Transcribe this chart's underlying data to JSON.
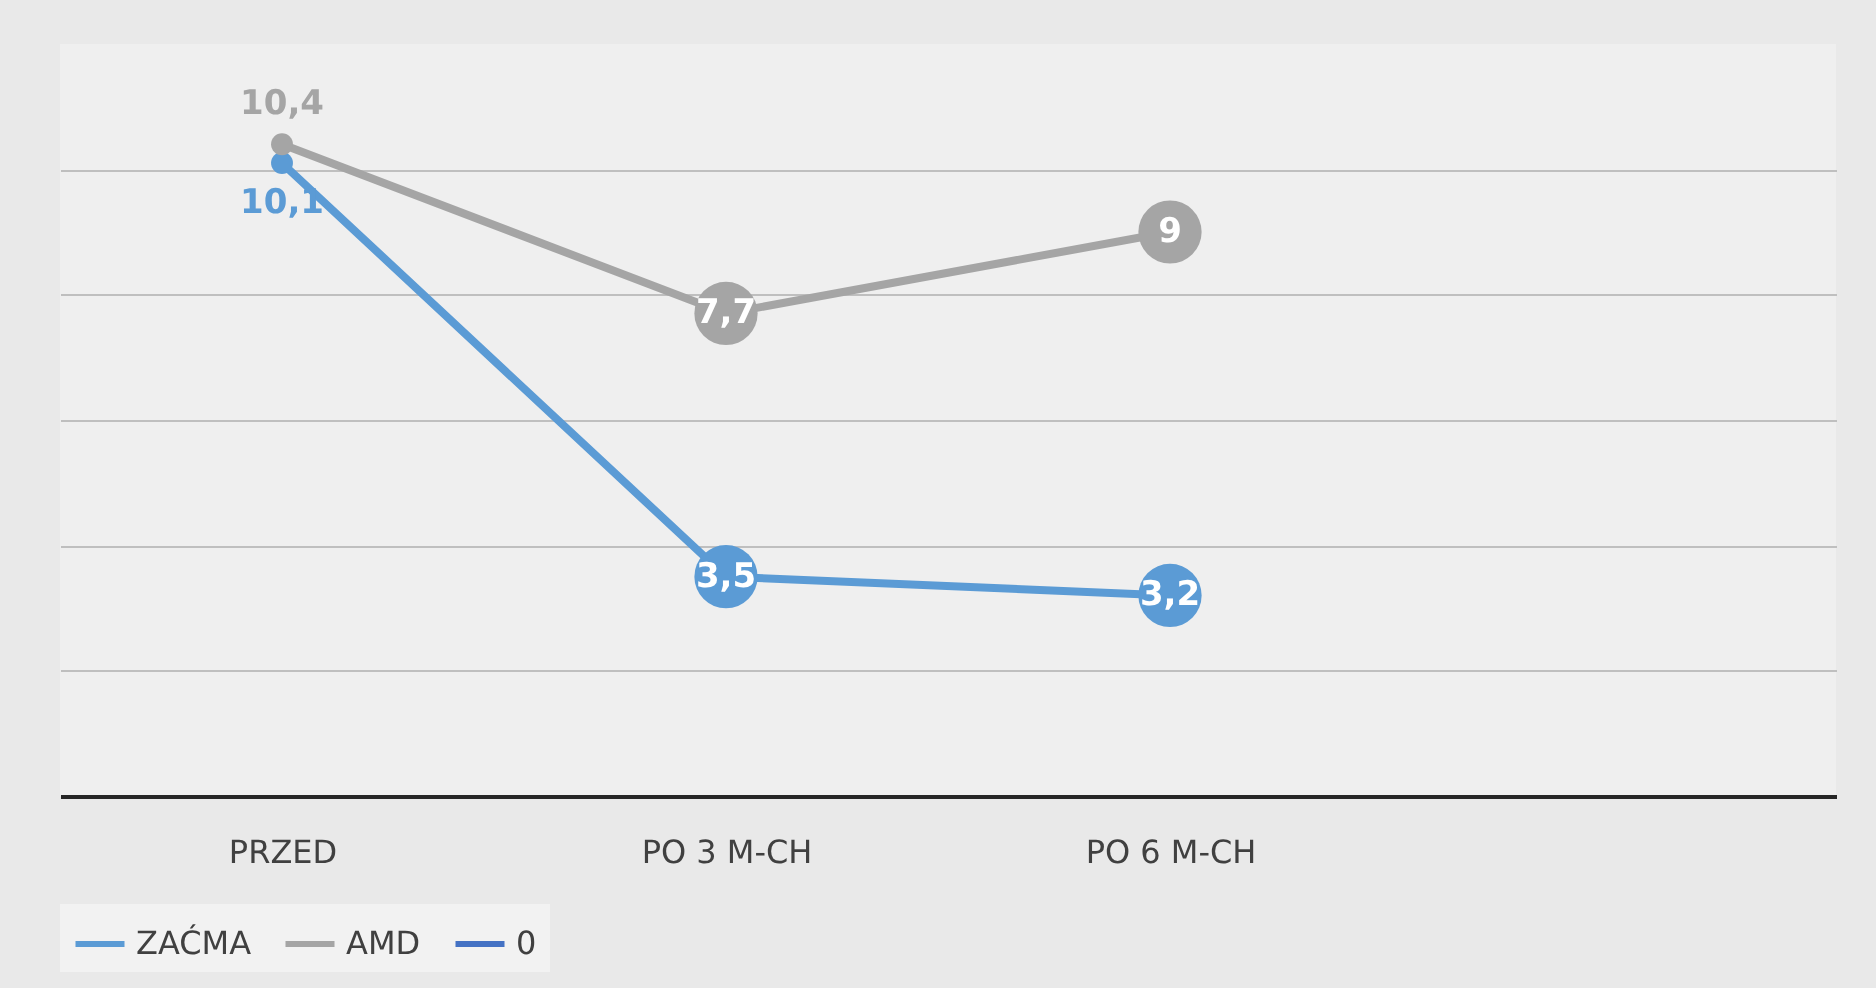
{
  "chart_data": {
    "type": "line",
    "categories": [
      "PRZED",
      "PO 3 M-CH",
      "PO 6 M-CH",
      null
    ],
    "series": [
      {
        "name": "ZAĆMA",
        "color": "#5b9bd5",
        "values": [
          10.1,
          3.5,
          3.2,
          null
        ],
        "value_labels": [
          "10,1",
          "3,5",
          "3,2",
          null
        ]
      },
      {
        "name": "AMD",
        "color": "#a5a5a5",
        "values": [
          10.4,
          7.7,
          9,
          null
        ],
        "value_labels": [
          "10,4",
          "7,7",
          "9",
          null
        ]
      },
      {
        "name": "0",
        "color": "#4472c4",
        "values": [
          null,
          null,
          null,
          null
        ]
      }
    ],
    "ylim": [
      0,
      12
    ],
    "yticks": [
      {
        "value": 0,
        "label": null
      },
      {
        "value": 2,
        "label": null
      },
      {
        "value": 4,
        "label": null
      },
      {
        "value": 6,
        "label": null
      },
      {
        "value": 8,
        "label": null
      },
      {
        "value": 10,
        "label": null
      }
    ],
    "tick_labels": "x",
    "grid": "y",
    "legend": "bottom",
    "marker": "circle",
    "line_style": "solid"
  }
}
